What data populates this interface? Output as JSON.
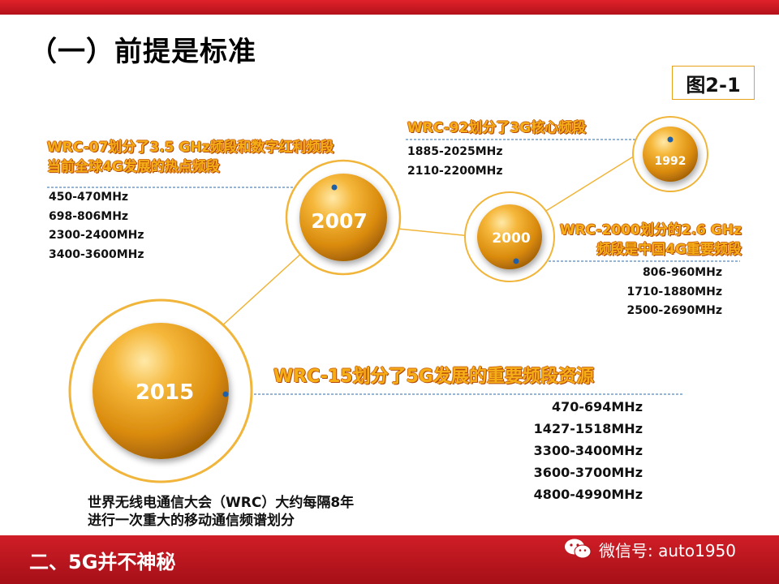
{
  "slide": {
    "title": "（一）前提是标准",
    "figure_label": "图2-1",
    "footnote_lines": [
      "世界无线电通信大会（WRC）大约每隔8年",
      "进行一次重大的移动通信频谱划分"
    ],
    "footer_title": "二、5G并不神秘",
    "watermark": "微信号: auto1950"
  },
  "milestones": [
    {
      "year": "1992",
      "heading_lines": [
        "WRC-92划分了3G核心频段"
      ],
      "bands": [
        "1885-2025MHz",
        "2110-2200MHz"
      ]
    },
    {
      "year": "2000",
      "heading_lines": [
        "WRC-2000划分的2.6 GHz",
        "频段是中国4G重要频段"
      ],
      "bands": [
        "806-960MHz",
        "1710-1880MHz",
        "2500-2690MHz"
      ]
    },
    {
      "year": "2007",
      "heading_lines": [
        "WRC-07划分了3.5 GHz频段和数字红利频段",
        "当前全球4G发展的热点频段"
      ],
      "bands": [
        "450-470MHz",
        "698-806MHz",
        "2300-2400MHz",
        "3400-3600MHz"
      ]
    },
    {
      "year": "2015",
      "heading_lines": [
        "WRC-15划分了5G发展的重要频段资源"
      ],
      "bands": [
        "470-694MHz",
        "1427-1518MHz",
        "3300-3400MHz",
        "3600-3700MHz",
        "4800-4990MHz"
      ]
    }
  ],
  "colors": {
    "accent_red": "#c8161d",
    "orb_gold": "#e8a21a",
    "heading_orange": "#f6ae17",
    "dot_blue": "#1f5fa8"
  }
}
